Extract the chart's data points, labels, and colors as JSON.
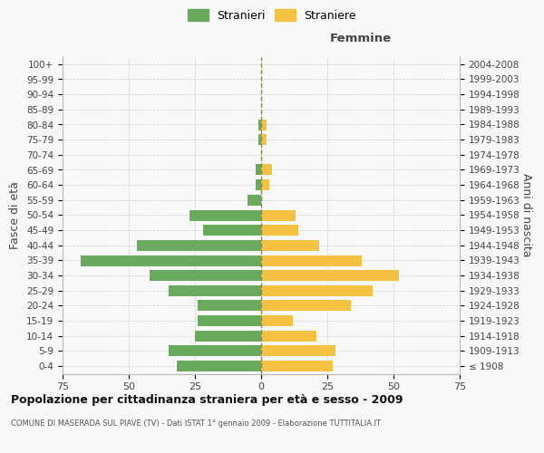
{
  "age_groups": [
    "100+",
    "95-99",
    "90-94",
    "85-89",
    "80-84",
    "75-79",
    "70-74",
    "65-69",
    "60-64",
    "55-59",
    "50-54",
    "45-49",
    "40-44",
    "35-39",
    "30-34",
    "25-29",
    "20-24",
    "15-19",
    "10-14",
    "5-9",
    "0-4"
  ],
  "birth_years": [
    "≤ 1908",
    "1909-1913",
    "1914-1918",
    "1919-1923",
    "1924-1928",
    "1929-1933",
    "1934-1938",
    "1939-1943",
    "1944-1948",
    "1949-1953",
    "1954-1958",
    "1959-1963",
    "1964-1968",
    "1969-1973",
    "1974-1978",
    "1979-1983",
    "1984-1988",
    "1989-1993",
    "1994-1998",
    "1999-2003",
    "2004-2008"
  ],
  "males": [
    0,
    0,
    0,
    0,
    1,
    1,
    0,
    2,
    2,
    5,
    27,
    22,
    47,
    68,
    42,
    35,
    24,
    24,
    25,
    35,
    32
  ],
  "females": [
    0,
    0,
    0,
    0,
    2,
    2,
    0,
    4,
    3,
    0,
    13,
    14,
    22,
    38,
    52,
    42,
    34,
    12,
    21,
    28,
    27
  ],
  "male_color": "#6aaa5e",
  "female_color": "#f5c143",
  "center_line_color": "#888855",
  "background_color": "#f8f8f8",
  "grid_color": "#cccccc",
  "title": "Popolazione per cittadinanza straniera per età e sesso - 2009",
  "subtitle": "COMUNE DI MASERADA SUL PIAVE (TV) - Dati ISTAT 1° gennaio 2009 - Elaborazione TUTTITALIA.IT",
  "ylabel_left": "Fasce di età",
  "ylabel_right": "Anni di nascita",
  "femmine_label": "Femmine",
  "legend_stranieri": "Stranieri",
  "legend_straniere": "Straniere",
  "xlim": 75
}
